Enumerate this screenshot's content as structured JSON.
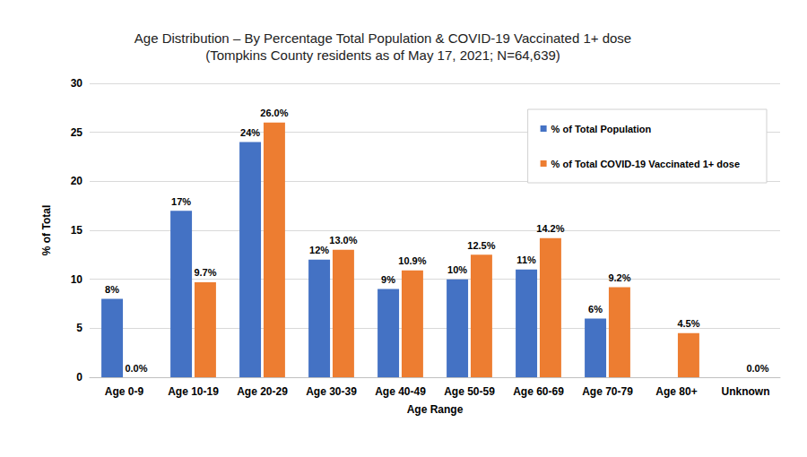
{
  "chart_data": {
    "type": "bar",
    "title": "Age Distribution – By Percentage Total Population & COVID-19 Vaccinated 1+ dose",
    "subtitle": "(Tompkins County residents as of May 17, 2021; N=64,639)",
    "x_label": "Age Range",
    "y_label": "% of Total",
    "categories": [
      "Age 0-9",
      "Age 10-19",
      "Age 20-29",
      "Age 30-39",
      "Age 40-49",
      "Age 50-59",
      "Age 60-69",
      "Age 70-79",
      "Age 80+",
      "Unknown"
    ],
    "series": [
      {
        "name": "% of Total Population",
        "color": "#4472c4",
        "values": [
          8,
          17,
          24,
          12,
          9,
          10,
          11,
          6,
          null,
          null
        ],
        "value_labels": [
          "8%",
          "17%",
          "24%",
          "12%",
          "9%",
          "10%",
          "11%",
          "6%",
          null,
          null
        ]
      },
      {
        "name": "% of Total COVID-19 Vaccinated 1+ dose",
        "color": "#ed7d31",
        "values": [
          0.0,
          9.7,
          26.0,
          13.0,
          10.9,
          12.5,
          14.2,
          9.2,
          4.5,
          0.0
        ],
        "value_labels": [
          "0.0%",
          "9.7%",
          "26.0%",
          "13.0%",
          "10.9%",
          "12.5%",
          "14.2%",
          "9.2%",
          "4.5%",
          "0.0%"
        ]
      }
    ],
    "ylim": [
      0,
      30
    ],
    "yticks": [
      0,
      5,
      10,
      15,
      20,
      25,
      30
    ],
    "grid": true,
    "legend": "upper right",
    "data_labels": true
  }
}
